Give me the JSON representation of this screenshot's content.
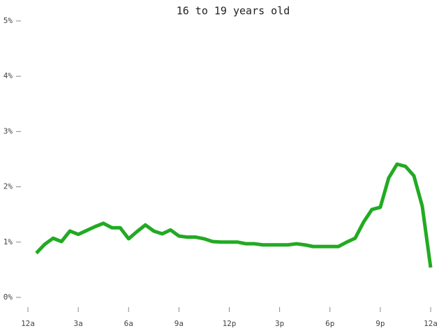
{
  "chart_data": {
    "type": "line",
    "title": "16 to 19 years old",
    "x": [
      0.5,
      1,
      1.5,
      2,
      2.5,
      3,
      3.5,
      4,
      4.5,
      5,
      5.5,
      6,
      6.5,
      7,
      7.5,
      8,
      8.5,
      9,
      9.5,
      10,
      10.5,
      11,
      11.5,
      12,
      12.5,
      13,
      13.5,
      14,
      14.5,
      15,
      15.5,
      16,
      16.5,
      17,
      17.5,
      18,
      18.5,
      19,
      19.5,
      20,
      20.5,
      21,
      21.5,
      22,
      22.5,
      23,
      23.5,
      24
    ],
    "series": [
      {
        "color": "#22aa22",
        "values": [
          0.8,
          0.96,
          1.07,
          1.01,
          1.2,
          1.14,
          1.21,
          1.28,
          1.34,
          1.26,
          1.26,
          1.06,
          1.19,
          1.31,
          1.2,
          1.15,
          1.22,
          1.11,
          1.09,
          1.09,
          1.06,
          1.01,
          1.0,
          1.0,
          1.0,
          0.97,
          0.97,
          0.95,
          0.95,
          0.95,
          0.95,
          0.97,
          0.95,
          0.92,
          0.92,
          0.92,
          0.92,
          1.0,
          1.07,
          1.36,
          1.59,
          1.63,
          2.16,
          2.41,
          2.37,
          2.2,
          1.65,
          0.54
        ]
      }
    ],
    "xlim": [
      0,
      24
    ],
    "xticks": [
      {
        "value": 0,
        "label": "12a"
      },
      {
        "value": 3,
        "label": "3a"
      },
      {
        "value": 6,
        "label": "6a"
      },
      {
        "value": 9,
        "label": "9a"
      },
      {
        "value": 12,
        "label": "12p"
      },
      {
        "value": 15,
        "label": "3p"
      },
      {
        "value": 18,
        "label": "6p"
      },
      {
        "value": 21,
        "label": "9p"
      },
      {
        "value": 24,
        "label": "12a"
      }
    ],
    "ylim": [
      0,
      5
    ],
    "yticks": [
      {
        "value": 0,
        "label": "0%"
      },
      {
        "value": 1,
        "label": "1%"
      },
      {
        "value": 2,
        "label": "2%"
      },
      {
        "value": 3,
        "label": "3%"
      },
      {
        "value": 4,
        "label": "4%"
      },
      {
        "value": 5,
        "label": "5%"
      }
    ]
  }
}
